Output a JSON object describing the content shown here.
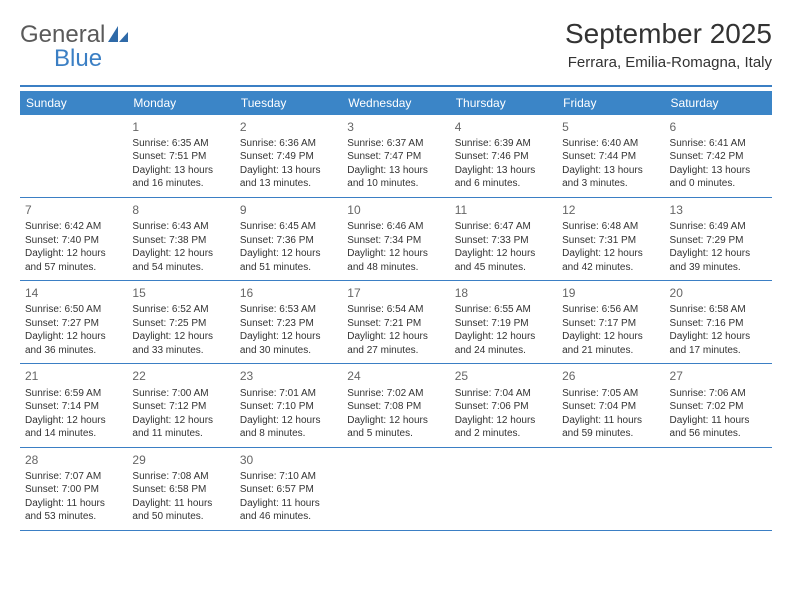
{
  "logo": {
    "word1": "General",
    "word2": "Blue"
  },
  "header": {
    "title": "September 2025",
    "subtitle": "Ferrara, Emilia-Romagna, Italy"
  },
  "colors": {
    "header_bar": "#3b85c7",
    "underline": "#3b7fc4",
    "text": "#333333",
    "day_num": "#666666",
    "logo_gray": "#5a5a5a",
    "logo_blue": "#3b7fc4",
    "background": "#ffffff"
  },
  "weekdays": [
    "Sunday",
    "Monday",
    "Tuesday",
    "Wednesday",
    "Thursday",
    "Friday",
    "Saturday"
  ],
  "weeks": [
    [
      {
        "n": "",
        "sunrise": "",
        "sunset": "",
        "daylight": ""
      },
      {
        "n": "1",
        "sunrise": "Sunrise: 6:35 AM",
        "sunset": "Sunset: 7:51 PM",
        "daylight": "Daylight: 13 hours and 16 minutes."
      },
      {
        "n": "2",
        "sunrise": "Sunrise: 6:36 AM",
        "sunset": "Sunset: 7:49 PM",
        "daylight": "Daylight: 13 hours and 13 minutes."
      },
      {
        "n": "3",
        "sunrise": "Sunrise: 6:37 AM",
        "sunset": "Sunset: 7:47 PM",
        "daylight": "Daylight: 13 hours and 10 minutes."
      },
      {
        "n": "4",
        "sunrise": "Sunrise: 6:39 AM",
        "sunset": "Sunset: 7:46 PM",
        "daylight": "Daylight: 13 hours and 6 minutes."
      },
      {
        "n": "5",
        "sunrise": "Sunrise: 6:40 AM",
        "sunset": "Sunset: 7:44 PM",
        "daylight": "Daylight: 13 hours and 3 minutes."
      },
      {
        "n": "6",
        "sunrise": "Sunrise: 6:41 AM",
        "sunset": "Sunset: 7:42 PM",
        "daylight": "Daylight: 13 hours and 0 minutes."
      }
    ],
    [
      {
        "n": "7",
        "sunrise": "Sunrise: 6:42 AM",
        "sunset": "Sunset: 7:40 PM",
        "daylight": "Daylight: 12 hours and 57 minutes."
      },
      {
        "n": "8",
        "sunrise": "Sunrise: 6:43 AM",
        "sunset": "Sunset: 7:38 PM",
        "daylight": "Daylight: 12 hours and 54 minutes."
      },
      {
        "n": "9",
        "sunrise": "Sunrise: 6:45 AM",
        "sunset": "Sunset: 7:36 PM",
        "daylight": "Daylight: 12 hours and 51 minutes."
      },
      {
        "n": "10",
        "sunrise": "Sunrise: 6:46 AM",
        "sunset": "Sunset: 7:34 PM",
        "daylight": "Daylight: 12 hours and 48 minutes."
      },
      {
        "n": "11",
        "sunrise": "Sunrise: 6:47 AM",
        "sunset": "Sunset: 7:33 PM",
        "daylight": "Daylight: 12 hours and 45 minutes."
      },
      {
        "n": "12",
        "sunrise": "Sunrise: 6:48 AM",
        "sunset": "Sunset: 7:31 PM",
        "daylight": "Daylight: 12 hours and 42 minutes."
      },
      {
        "n": "13",
        "sunrise": "Sunrise: 6:49 AM",
        "sunset": "Sunset: 7:29 PM",
        "daylight": "Daylight: 12 hours and 39 minutes."
      }
    ],
    [
      {
        "n": "14",
        "sunrise": "Sunrise: 6:50 AM",
        "sunset": "Sunset: 7:27 PM",
        "daylight": "Daylight: 12 hours and 36 minutes."
      },
      {
        "n": "15",
        "sunrise": "Sunrise: 6:52 AM",
        "sunset": "Sunset: 7:25 PM",
        "daylight": "Daylight: 12 hours and 33 minutes."
      },
      {
        "n": "16",
        "sunrise": "Sunrise: 6:53 AM",
        "sunset": "Sunset: 7:23 PM",
        "daylight": "Daylight: 12 hours and 30 minutes."
      },
      {
        "n": "17",
        "sunrise": "Sunrise: 6:54 AM",
        "sunset": "Sunset: 7:21 PM",
        "daylight": "Daylight: 12 hours and 27 minutes."
      },
      {
        "n": "18",
        "sunrise": "Sunrise: 6:55 AM",
        "sunset": "Sunset: 7:19 PM",
        "daylight": "Daylight: 12 hours and 24 minutes."
      },
      {
        "n": "19",
        "sunrise": "Sunrise: 6:56 AM",
        "sunset": "Sunset: 7:17 PM",
        "daylight": "Daylight: 12 hours and 21 minutes."
      },
      {
        "n": "20",
        "sunrise": "Sunrise: 6:58 AM",
        "sunset": "Sunset: 7:16 PM",
        "daylight": "Daylight: 12 hours and 17 minutes."
      }
    ],
    [
      {
        "n": "21",
        "sunrise": "Sunrise: 6:59 AM",
        "sunset": "Sunset: 7:14 PM",
        "daylight": "Daylight: 12 hours and 14 minutes."
      },
      {
        "n": "22",
        "sunrise": "Sunrise: 7:00 AM",
        "sunset": "Sunset: 7:12 PM",
        "daylight": "Daylight: 12 hours and 11 minutes."
      },
      {
        "n": "23",
        "sunrise": "Sunrise: 7:01 AM",
        "sunset": "Sunset: 7:10 PM",
        "daylight": "Daylight: 12 hours and 8 minutes."
      },
      {
        "n": "24",
        "sunrise": "Sunrise: 7:02 AM",
        "sunset": "Sunset: 7:08 PM",
        "daylight": "Daylight: 12 hours and 5 minutes."
      },
      {
        "n": "25",
        "sunrise": "Sunrise: 7:04 AM",
        "sunset": "Sunset: 7:06 PM",
        "daylight": "Daylight: 12 hours and 2 minutes."
      },
      {
        "n": "26",
        "sunrise": "Sunrise: 7:05 AM",
        "sunset": "Sunset: 7:04 PM",
        "daylight": "Daylight: 11 hours and 59 minutes."
      },
      {
        "n": "27",
        "sunrise": "Sunrise: 7:06 AM",
        "sunset": "Sunset: 7:02 PM",
        "daylight": "Daylight: 11 hours and 56 minutes."
      }
    ],
    [
      {
        "n": "28",
        "sunrise": "Sunrise: 7:07 AM",
        "sunset": "Sunset: 7:00 PM",
        "daylight": "Daylight: 11 hours and 53 minutes."
      },
      {
        "n": "29",
        "sunrise": "Sunrise: 7:08 AM",
        "sunset": "Sunset: 6:58 PM",
        "daylight": "Daylight: 11 hours and 50 minutes."
      },
      {
        "n": "30",
        "sunrise": "Sunrise: 7:10 AM",
        "sunset": "Sunset: 6:57 PM",
        "daylight": "Daylight: 11 hours and 46 minutes."
      },
      {
        "n": "",
        "sunrise": "",
        "sunset": "",
        "daylight": ""
      },
      {
        "n": "",
        "sunrise": "",
        "sunset": "",
        "daylight": ""
      },
      {
        "n": "",
        "sunrise": "",
        "sunset": "",
        "daylight": ""
      },
      {
        "n": "",
        "sunrise": "",
        "sunset": "",
        "daylight": ""
      }
    ]
  ]
}
